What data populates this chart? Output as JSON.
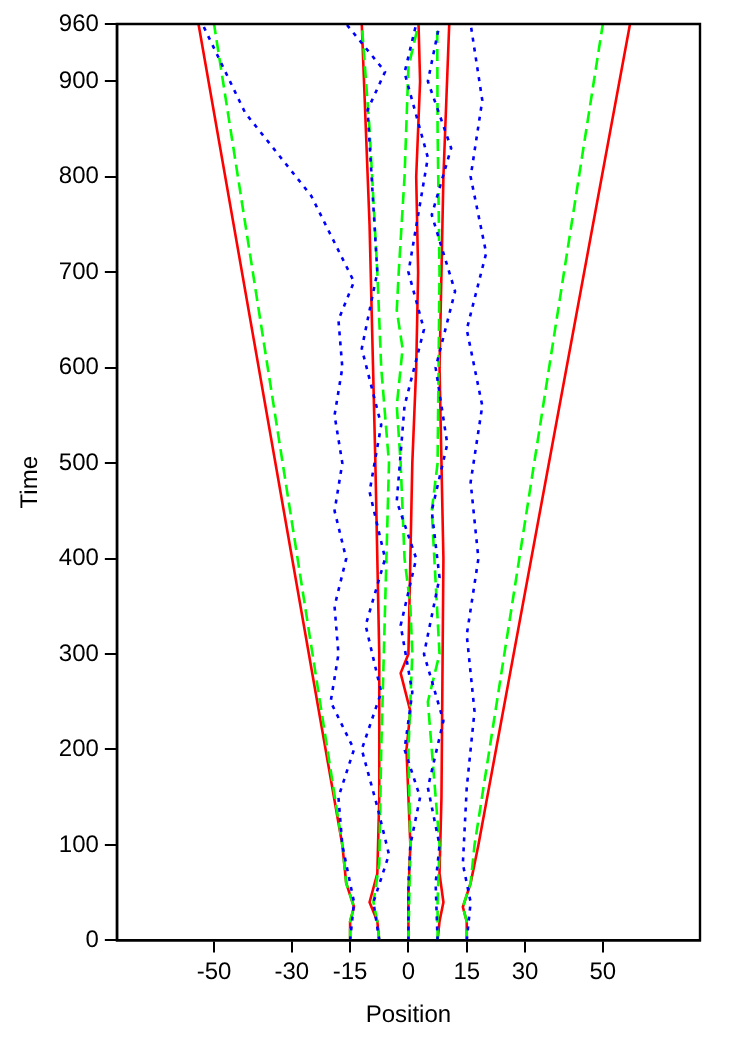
{
  "chart_data": {
    "type": "line",
    "xlabel": "Position",
    "ylabel": "Time",
    "xlim": [
      -75,
      75
    ],
    "ylim": [
      0,
      960
    ],
    "xticks": [
      -50,
      -30,
      -15,
      0,
      15,
      30,
      50
    ],
    "yticks": [
      0,
      100,
      200,
      300,
      400,
      500,
      600,
      700,
      800,
      900,
      960
    ],
    "grid": false,
    "legend": false,
    "marker": "none",
    "series": [
      {
        "color": "#ff0000",
        "line_style": "solid",
        "x": [
          -15,
          -15,
          -14,
          -16,
          -17,
          -54
        ],
        "values": [
          0,
          20,
          35,
          60,
          100,
          960
        ]
      },
      {
        "color": "#ff0000",
        "line_style": "solid",
        "x": [
          -7.5,
          -8,
          -10,
          -8,
          -7.5,
          -7.5,
          -8.5,
          -10,
          -12
        ],
        "values": [
          0,
          20,
          40,
          70,
          150,
          300,
          500,
          750,
          960
        ]
      },
      {
        "color": "#ff0000",
        "line_style": "solid",
        "x": [
          0,
          0,
          0.5,
          -0.5,
          0.5,
          -2,
          0,
          0.5,
          1,
          2,
          2.5,
          2,
          3,
          2.6
        ],
        "values": [
          0,
          50,
          100,
          200,
          240,
          280,
          300,
          400,
          500,
          600,
          700,
          800,
          900,
          960
        ]
      },
      {
        "color": "#ff0000",
        "line_style": "solid",
        "x": [
          7.5,
          8,
          9,
          8,
          8.5,
          9,
          8,
          9,
          10.5
        ],
        "values": [
          0,
          20,
          40,
          70,
          150,
          400,
          600,
          800,
          960
        ]
      },
      {
        "color": "#ff0000",
        "line_style": "solid",
        "x": [
          15,
          15,
          14,
          16,
          18,
          57
        ],
        "values": [
          0,
          20,
          35,
          60,
          100,
          960
        ]
      },
      {
        "color": "#00ff00",
        "line_style": "dashed",
        "x": [
          -15,
          -15,
          -14,
          -16,
          -17,
          -50
        ],
        "values": [
          0,
          20,
          35,
          60,
          100,
          960
        ]
      },
      {
        "color": "#00ff00",
        "line_style": "dashed",
        "x": [
          -7.5,
          -8,
          -9,
          -7.5,
          -7,
          -6,
          -5,
          -7,
          -8,
          -10,
          -12
        ],
        "values": [
          0,
          20,
          40,
          80,
          200,
          350,
          500,
          600,
          700,
          850,
          960
        ]
      },
      {
        "color": "#00ff00",
        "line_style": "dashed",
        "x": [
          0,
          0.5,
          0,
          1,
          0.5,
          -1,
          -2,
          -3,
          -2,
          -1.5,
          -3,
          -2.5,
          -1,
          0,
          2.6
        ],
        "values": [
          0,
          100,
          200,
          300,
          350,
          400,
          500,
          560,
          600,
          620,
          660,
          700,
          800,
          915,
          960
        ]
      },
      {
        "color": "#00ff00",
        "line_style": "dashed",
        "x": [
          7.5,
          7.5,
          8,
          5,
          8,
          6,
          7.5,
          8,
          7.5,
          7.4
        ],
        "values": [
          0,
          40,
          100,
          250,
          300,
          450,
          500,
          700,
          850,
          960
        ]
      },
      {
        "color": "#00ff00",
        "line_style": "dashed",
        "x": [
          15,
          15,
          14,
          16,
          17,
          50
        ],
        "values": [
          0,
          20,
          35,
          60,
          100,
          960
        ]
      },
      {
        "color": "#0000ff",
        "line_style": "dotted",
        "x": [
          -15,
          -14,
          -16,
          -17,
          -18,
          -14,
          -20,
          -18,
          -19,
          -16,
          -19,
          -17,
          -19,
          -17,
          -18,
          -14,
          -25,
          -42,
          -53
        ],
        "values": [
          0,
          40,
          80,
          100,
          150,
          200,
          250,
          300,
          350,
          400,
          450,
          500,
          550,
          600,
          650,
          690,
          780,
          867,
          960
        ]
      },
      {
        "color": "#0000ff",
        "line_style": "dotted",
        "x": [
          -7.5,
          -9,
          -5,
          -8,
          -12,
          -7,
          -11,
          -6,
          -10,
          -7,
          -12,
          -8,
          -10.5,
          -6,
          -16
        ],
        "values": [
          0,
          40,
          90,
          140,
          200,
          260,
          330,
          400,
          470,
          540,
          620,
          700,
          870,
          910,
          960
        ]
      },
      {
        "color": "#0000ff",
        "line_style": "dotted",
        "x": [
          0,
          0,
          0.5,
          3,
          -1,
          1,
          -2,
          2,
          -3,
          -1,
          4,
          0,
          5,
          -1,
          2
        ],
        "values": [
          0,
          60,
          100,
          150,
          200,
          260,
          330,
          400,
          460,
          560,
          640,
          700,
          820,
          909,
          960
        ]
      },
      {
        "color": "#0000ff",
        "line_style": "dotted",
        "x": [
          7.5,
          7,
          8,
          5,
          9,
          4,
          8,
          6,
          10,
          7,
          12,
          6,
          11,
          5,
          8
        ],
        "values": [
          0,
          60,
          100,
          160,
          230,
          300,
          380,
          450,
          520,
          600,
          680,
          760,
          830,
          900,
          960
        ]
      },
      {
        "color": "#0000ff",
        "line_style": "dotted",
        "x": [
          15,
          16,
          14,
          15,
          17,
          15,
          18,
          16,
          19,
          15,
          20,
          16,
          19,
          16
        ],
        "values": [
          0,
          40,
          80,
          160,
          240,
          320,
          400,
          480,
          560,
          640,
          720,
          800,
          880,
          960
        ]
      }
    ]
  }
}
